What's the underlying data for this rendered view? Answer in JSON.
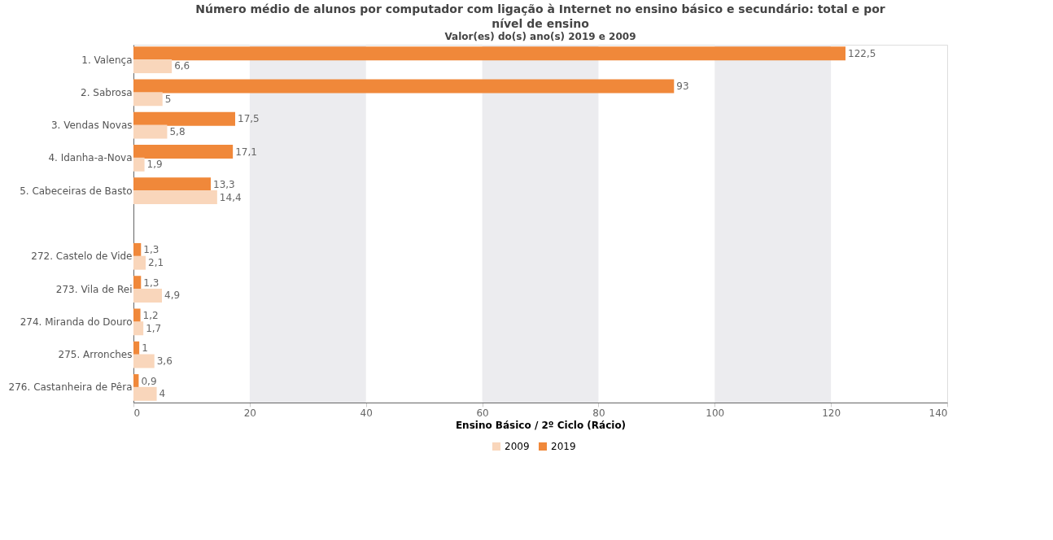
{
  "chart_data": {
    "type": "bar",
    "orientation": "horizontal",
    "title": "Número médio de alunos por computador com ligação à Internet no ensino básico e secundário: total e por nível de ensino",
    "subtitle": "Valor(es) do(s) ano(s) 2019 e 2009",
    "xlabel": "Ensino Básico / 2º Ciclo (Rácio)",
    "categories": [
      "1. Valença",
      "2. Sabrosa",
      "3. Vendas Novas",
      "4. Idanha-a-Nova",
      "5. Cabeceiras de Basto",
      null,
      "272. Castelo de Vide",
      "273. Vila de Rei",
      "274. Miranda do Douro",
      "275. Arronches",
      "276. Castanheira de Pêra"
    ],
    "series": [
      {
        "name": "2019",
        "color": "#f0883a",
        "values": [
          122.5,
          93,
          17.5,
          17.1,
          13.3,
          null,
          1.3,
          1.3,
          1.2,
          1,
          0.9
        ],
        "value_labels": [
          "122,5",
          "93",
          "17,5",
          "17,1",
          "13,3",
          null,
          "1,3",
          "1,3",
          "1,2",
          "1",
          "0,9"
        ]
      },
      {
        "name": "2009",
        "color": "#f9d6bb",
        "values": [
          6.6,
          5,
          5.8,
          1.9,
          14.4,
          null,
          2.1,
          4.9,
          1.7,
          3.6,
          4
        ],
        "value_labels": [
          "6,6",
          "5",
          "5,8",
          "1,9",
          "14,4",
          null,
          "2,1",
          "4,9",
          "1,7",
          "3,6",
          "4"
        ]
      }
    ],
    "xlim": [
      0,
      140
    ],
    "xticks": [
      0,
      20,
      40,
      60,
      80,
      100,
      120,
      140
    ],
    "bands": [
      {
        "axis": "x",
        "from": 20,
        "to": 40,
        "color": "#ececef"
      },
      {
        "axis": "x",
        "from": 60,
        "to": 80,
        "color": "#ececef"
      },
      {
        "axis": "x",
        "from": 100,
        "to": 120,
        "color": "#ececef"
      }
    ],
    "grid": false,
    "legend": "bottom"
  }
}
